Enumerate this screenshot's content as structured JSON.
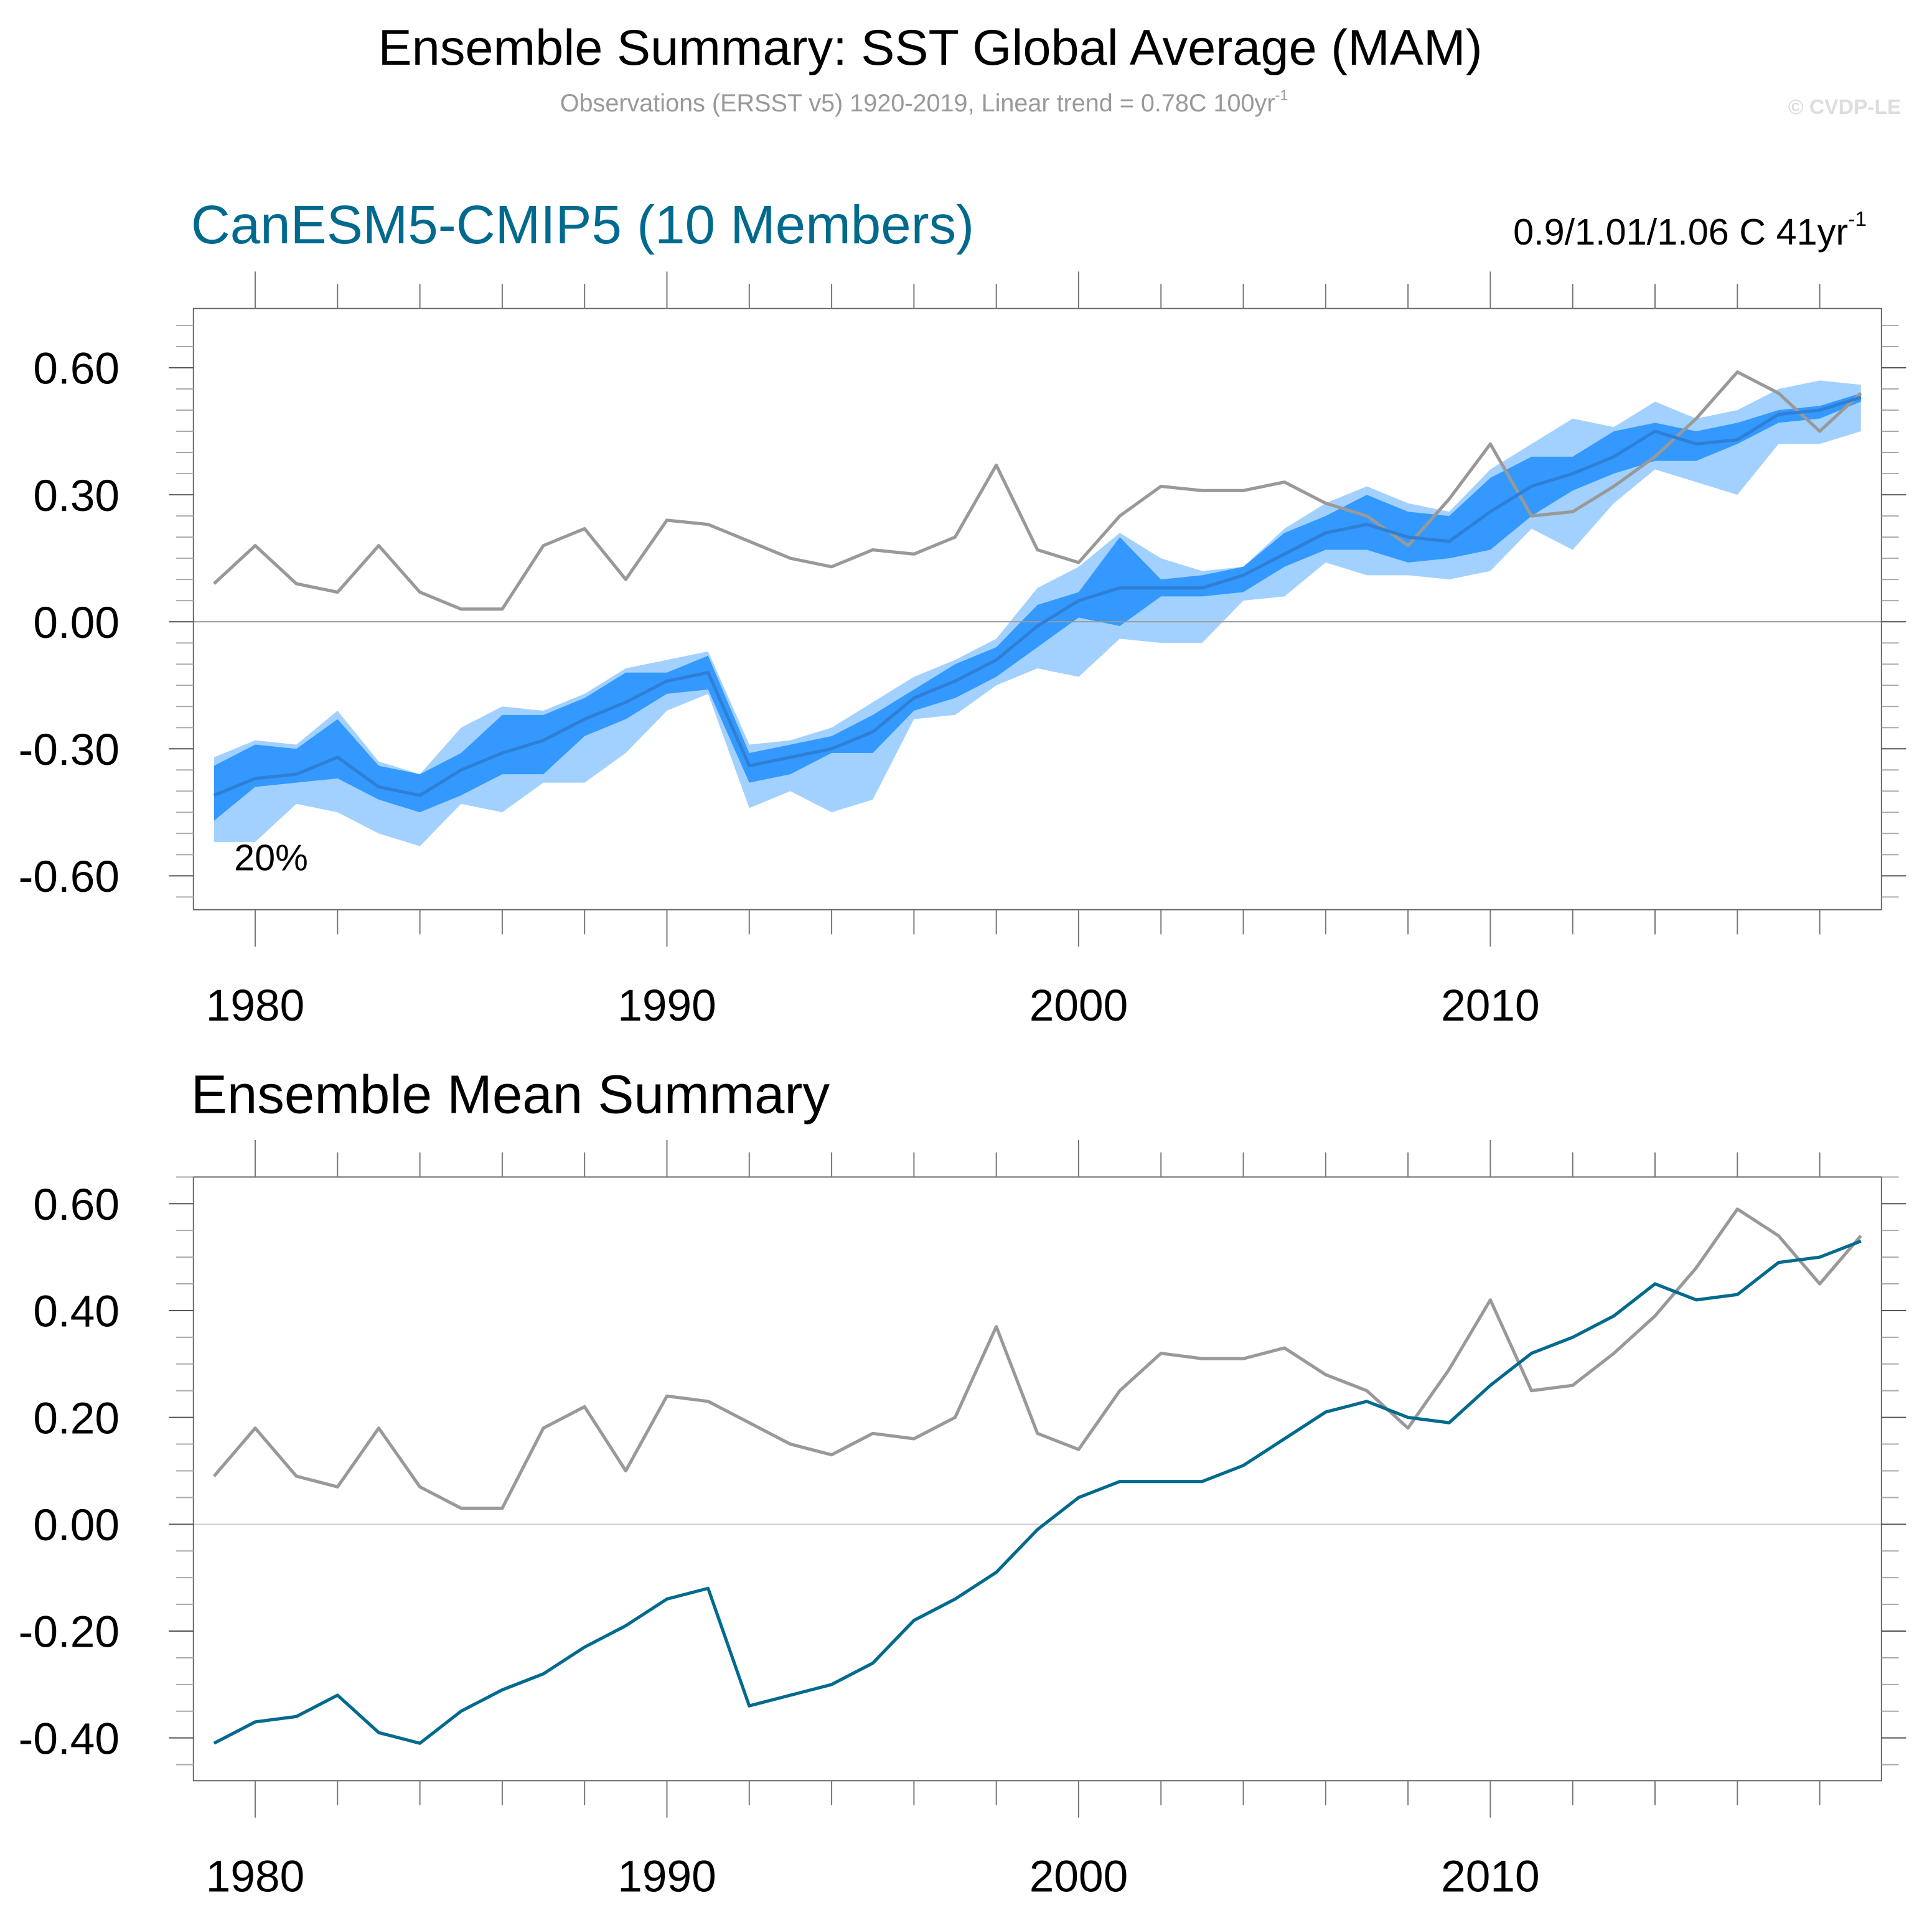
{
  "header": {
    "title": "Ensemble Summary: SST Global Average (MAM)",
    "subtitle": "Observations (ERSST v5) 1920-2019, Linear trend = 0.78C 100yr",
    "subtitle_sup": "-1",
    "watermark": "© CVDP-LE"
  },
  "colors": {
    "observations": "#999999",
    "ensemble_mean_top": "#2f7fd6",
    "ensemble_mean_bottom": "#006a8e",
    "band_outer": "#a3d1ff",
    "band_inner": "#3399ff",
    "panel_title": "#006a8e"
  },
  "chart_data": [
    {
      "type": "area",
      "title": "CanESM5-CMIP5 (10 Members)",
      "trend_label": "0.9/1.01/1.06 C 41yr",
      "trend_sup": "-1",
      "annotation": "20%",
      "xlim": [
        1978.5,
        2019.5
      ],
      "ylim": [
        -0.68,
        0.74
      ],
      "xticks": [
        1980,
        1990,
        2000,
        2010
      ],
      "xtick_labels": [
        "1980",
        "1990",
        "2000",
        "2010"
      ],
      "yticks": [
        -0.6,
        -0.3,
        0.0,
        0.3,
        0.6
      ],
      "ytick_labels": [
        "-0.60",
        "-0.30",
        "0.00",
        "0.30",
        "0.60"
      ],
      "grid": false,
      "x": [
        1979,
        1980,
        1981,
        1982,
        1983,
        1984,
        1985,
        1986,
        1987,
        1988,
        1989,
        1990,
        1991,
        1992,
        1993,
        1994,
        1995,
        1996,
        1997,
        1998,
        1999,
        2000,
        2001,
        2002,
        2003,
        2004,
        2005,
        2006,
        2007,
        2008,
        2009,
        2010,
        2011,
        2012,
        2013,
        2014,
        2015,
        2016,
        2017,
        2018,
        2019
      ],
      "bands": {
        "min": [
          -0.52,
          -0.52,
          -0.43,
          -0.45,
          -0.5,
          -0.53,
          -0.43,
          -0.45,
          -0.38,
          -0.38,
          -0.31,
          -0.21,
          -0.17,
          -0.44,
          -0.4,
          -0.45,
          -0.42,
          -0.23,
          -0.22,
          -0.15,
          -0.11,
          -0.13,
          -0.04,
          -0.05,
          -0.05,
          0.05,
          0.06,
          0.14,
          0.11,
          0.11,
          0.1,
          0.12,
          0.22,
          0.17,
          0.28,
          0.36,
          0.33,
          0.3,
          0.42,
          0.42,
          0.45
        ],
        "low": [
          -0.47,
          -0.39,
          -0.38,
          -0.37,
          -0.42,
          -0.45,
          -0.41,
          -0.36,
          -0.36,
          -0.27,
          -0.23,
          -0.17,
          -0.16,
          -0.38,
          -0.36,
          -0.31,
          -0.31,
          -0.21,
          -0.18,
          -0.13,
          -0.06,
          0.01,
          -0.01,
          0.06,
          0.06,
          0.07,
          0.13,
          0.17,
          0.17,
          0.14,
          0.15,
          0.17,
          0.25,
          0.31,
          0.35,
          0.38,
          0.38,
          0.42,
          0.47,
          0.48,
          0.52
        ],
        "high": [
          -0.34,
          -0.29,
          -0.3,
          -0.23,
          -0.34,
          -0.36,
          -0.31,
          -0.22,
          -0.22,
          -0.18,
          -0.12,
          -0.12,
          -0.08,
          -0.31,
          -0.29,
          -0.27,
          -0.22,
          -0.16,
          -0.1,
          -0.06,
          0.04,
          0.07,
          0.2,
          0.1,
          0.11,
          0.13,
          0.21,
          0.25,
          0.3,
          0.26,
          0.25,
          0.34,
          0.39,
          0.39,
          0.45,
          0.47,
          0.45,
          0.47,
          0.5,
          0.51,
          0.54
        ],
        "max": [
          -0.32,
          -0.28,
          -0.29,
          -0.21,
          -0.33,
          -0.36,
          -0.25,
          -0.2,
          -0.21,
          -0.17,
          -0.11,
          -0.09,
          -0.07,
          -0.29,
          -0.28,
          -0.25,
          -0.19,
          -0.13,
          -0.09,
          -0.04,
          0.08,
          0.13,
          0.21,
          0.15,
          0.12,
          0.13,
          0.22,
          0.28,
          0.32,
          0.28,
          0.26,
          0.36,
          0.42,
          0.48,
          0.46,
          0.52,
          0.48,
          0.5,
          0.55,
          0.57,
          0.56
        ]
      },
      "series": [
        {
          "values": [
            -0.41,
            -0.37,
            -0.36,
            -0.32,
            -0.39,
            -0.41,
            -0.35,
            -0.31,
            -0.28,
            -0.23,
            -0.19,
            -0.14,
            -0.12,
            -0.34,
            -0.32,
            -0.3,
            -0.26,
            -0.18,
            -0.14,
            -0.09,
            -0.01,
            0.05,
            0.08,
            0.08,
            0.08,
            0.11,
            0.16,
            0.21,
            0.23,
            0.2,
            0.19,
            0.26,
            0.32,
            0.35,
            0.39,
            0.45,
            0.42,
            0.43,
            0.49,
            0.5,
            0.53
          ]
        },
        {
          "values": [
            0.09,
            0.18,
            0.09,
            0.07,
            0.18,
            0.07,
            0.03,
            0.03,
            0.18,
            0.22,
            0.1,
            0.24,
            0.23,
            0.19,
            0.15,
            0.13,
            0.17,
            0.16,
            0.2,
            0.37,
            0.17,
            0.14,
            0.25,
            0.32,
            0.31,
            0.31,
            0.33,
            0.28,
            0.25,
            0.18,
            0.29,
            0.42,
            0.25,
            0.26,
            0.32,
            0.39,
            0.48,
            0.59,
            0.54,
            0.45,
            0.54
          ]
        }
      ]
    },
    {
      "type": "line",
      "title": "Ensemble Mean Summary",
      "xlim": [
        1978.5,
        2019.5
      ],
      "ylim": [
        -0.48,
        0.65
      ],
      "xticks": [
        1980,
        1990,
        2000,
        2010
      ],
      "xtick_labels": [
        "1980",
        "1990",
        "2000",
        "2010"
      ],
      "yticks": [
        -0.4,
        -0.2,
        0.0,
        0.2,
        0.4,
        0.6
      ],
      "ytick_labels": [
        "-0.40",
        "-0.20",
        "0.00",
        "0.20",
        "0.40",
        "0.60"
      ],
      "grid": false,
      "x": [
        1979,
        1980,
        1981,
        1982,
        1983,
        1984,
        1985,
        1986,
        1987,
        1988,
        1989,
        1990,
        1991,
        1992,
        1993,
        1994,
        1995,
        1996,
        1997,
        1998,
        1999,
        2000,
        2001,
        2002,
        2003,
        2004,
        2005,
        2006,
        2007,
        2008,
        2009,
        2010,
        2011,
        2012,
        2013,
        2014,
        2015,
        2016,
        2017,
        2018,
        2019
      ],
      "series": [
        {
          "values": [
            -0.41,
            -0.37,
            -0.36,
            -0.32,
            -0.39,
            -0.41,
            -0.35,
            -0.31,
            -0.28,
            -0.23,
            -0.19,
            -0.14,
            -0.12,
            -0.34,
            -0.32,
            -0.3,
            -0.26,
            -0.18,
            -0.14,
            -0.09,
            -0.01,
            0.05,
            0.08,
            0.08,
            0.08,
            0.11,
            0.16,
            0.21,
            0.23,
            0.2,
            0.19,
            0.26,
            0.32,
            0.35,
            0.39,
            0.45,
            0.42,
            0.43,
            0.49,
            0.5,
            0.53
          ]
        },
        {
          "values": [
            0.09,
            0.18,
            0.09,
            0.07,
            0.18,
            0.07,
            0.03,
            0.03,
            0.18,
            0.22,
            0.1,
            0.24,
            0.23,
            0.19,
            0.15,
            0.13,
            0.17,
            0.16,
            0.2,
            0.37,
            0.17,
            0.14,
            0.25,
            0.32,
            0.31,
            0.31,
            0.33,
            0.28,
            0.25,
            0.18,
            0.29,
            0.42,
            0.25,
            0.26,
            0.32,
            0.39,
            0.48,
            0.59,
            0.54,
            0.45,
            0.54
          ]
        }
      ]
    }
  ]
}
